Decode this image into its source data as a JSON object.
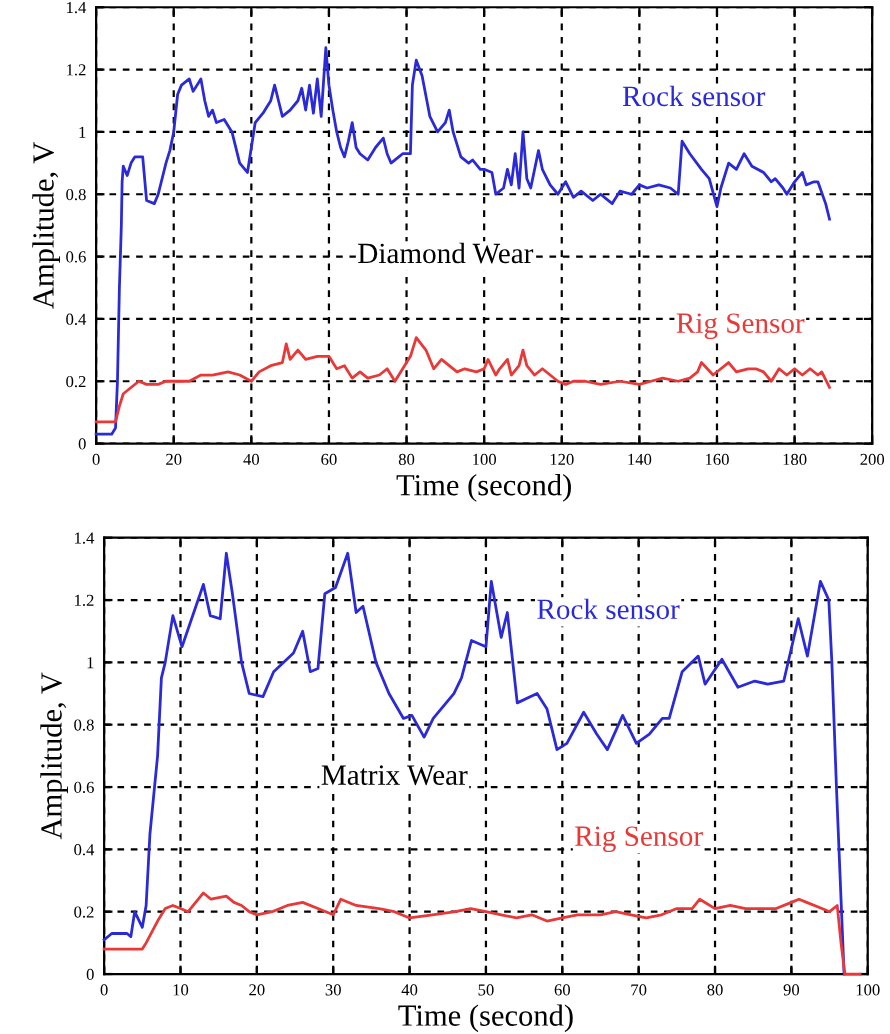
{
  "chart_data": [
    {
      "type": "line",
      "xlabel": "Time (second)",
      "ylabel": "Amplitude, V",
      "annotations": [
        "Diamond Wear"
      ],
      "xlim": [
        0,
        200
      ],
      "xticks": [
        0,
        20,
        40,
        60,
        80,
        100,
        120,
        140,
        160,
        180,
        200
      ],
      "ylim": [
        0,
        1.4
      ],
      "yticks": [
        0,
        0.2,
        0.4,
        0.6,
        0.8,
        1,
        1.2,
        1.4
      ],
      "grid": true,
      "line_style": "solid",
      "marker": "none",
      "series": [
        {
          "name": "Rock sensor",
          "color": "#2a2ad8",
          "x": [
            0,
            4,
            5,
            5.5,
            6,
            6.5,
            6.7,
            7,
            8,
            9,
            10,
            12,
            13,
            15,
            16,
            18,
            19,
            20,
            21,
            22,
            24,
            25,
            27,
            28,
            29,
            30,
            31,
            33,
            35,
            37,
            39,
            40,
            41,
            43,
            45,
            46,
            47,
            48,
            50,
            52,
            53,
            54,
            55,
            56,
            57,
            58,
            59.2,
            60,
            61,
            62,
            63,
            64,
            65,
            66,
            67,
            68,
            70,
            72,
            74,
            75,
            76,
            78,
            79,
            80,
            81,
            81.5,
            82.5,
            84,
            86,
            88,
            90,
            91,
            92,
            94,
            96,
            97,
            99,
            100,
            102,
            103,
            105,
            106,
            107,
            108,
            109,
            110,
            111,
            112,
            114,
            115,
            117,
            119,
            121,
            123,
            125,
            128,
            130,
            133,
            135,
            138,
            140,
            142,
            145,
            148,
            150,
            151,
            153,
            156,
            158,
            160,
            161,
            163,
            165,
            167,
            169,
            172,
            174,
            175,
            177,
            178,
            180,
            182,
            183,
            185,
            186,
            188,
            189
          ],
          "values": [
            0.03,
            0.03,
            0.05,
            0.2,
            0.5,
            0.7,
            0.84,
            0.89,
            0.86,
            0.9,
            0.92,
            0.92,
            0.78,
            0.77,
            0.8,
            0.9,
            0.94,
            1.0,
            1.12,
            1.15,
            1.17,
            1.13,
            1.17,
            1.1,
            1.05,
            1.07,
            1.03,
            1.04,
            1.0,
            0.9,
            0.87,
            0.95,
            1.03,
            1.06,
            1.1,
            1.15,
            1.1,
            1.05,
            1.07,
            1.1,
            1.14,
            1.07,
            1.15,
            1.06,
            1.17,
            1.05,
            1.27,
            1.15,
            1.07,
            1.0,
            0.95,
            0.92,
            0.97,
            1.03,
            0.95,
            0.93,
            0.91,
            0.95,
            0.98,
            0.93,
            0.9,
            0.92,
            0.93,
            0.93,
            0.93,
            1.15,
            1.23,
            1.18,
            1.05,
            1.0,
            1.03,
            1.07,
            1.0,
            0.92,
            0.9,
            0.91,
            0.88,
            0.88,
            0.87,
            0.8,
            0.82,
            0.88,
            0.83,
            0.93,
            0.82,
            1.0,
            0.85,
            0.82,
            0.94,
            0.88,
            0.83,
            0.8,
            0.84,
            0.79,
            0.81,
            0.78,
            0.8,
            0.77,
            0.81,
            0.8,
            0.83,
            0.82,
            0.83,
            0.82,
            0.8,
            0.97,
            0.93,
            0.88,
            0.85,
            0.76,
            0.82,
            0.9,
            0.88,
            0.93,
            0.89,
            0.87,
            0.84,
            0.85,
            0.82,
            0.8,
            0.84,
            0.87,
            0.83,
            0.84,
            0.84,
            0.77,
            0.72
          ]
        },
        {
          "name": "Rig Sensor",
          "color": "#e83838",
          "x": [
            0,
            5,
            6,
            7,
            9,
            11,
            13,
            16,
            18,
            20,
            24,
            27,
            30,
            34,
            37,
            40,
            42,
            45,
            48,
            49,
            50,
            52,
            54,
            57,
            60,
            62,
            64,
            66,
            68,
            70,
            73,
            75,
            77,
            79,
            81,
            82.5,
            85,
            87,
            89,
            91,
            93,
            95,
            98,
            100,
            101,
            103,
            104,
            106,
            107,
            109,
            110,
            111,
            113,
            115,
            117,
            119,
            121,
            123,
            126,
            130,
            135,
            140,
            143,
            146,
            150,
            153,
            155,
            156,
            159,
            161,
            163,
            165,
            168,
            170,
            172,
            174,
            176,
            178,
            180,
            182,
            184,
            186,
            187,
            189
          ],
          "values": [
            0.07,
            0.07,
            0.12,
            0.16,
            0.18,
            0.2,
            0.19,
            0.19,
            0.2,
            0.2,
            0.2,
            0.22,
            0.22,
            0.23,
            0.22,
            0.2,
            0.23,
            0.25,
            0.26,
            0.32,
            0.27,
            0.3,
            0.27,
            0.28,
            0.28,
            0.24,
            0.25,
            0.21,
            0.23,
            0.21,
            0.22,
            0.24,
            0.2,
            0.24,
            0.28,
            0.34,
            0.3,
            0.24,
            0.27,
            0.25,
            0.23,
            0.24,
            0.23,
            0.24,
            0.27,
            0.22,
            0.24,
            0.27,
            0.22,
            0.25,
            0.3,
            0.25,
            0.22,
            0.24,
            0.22,
            0.2,
            0.19,
            0.2,
            0.2,
            0.19,
            0.2,
            0.19,
            0.2,
            0.21,
            0.2,
            0.21,
            0.23,
            0.26,
            0.22,
            0.24,
            0.26,
            0.23,
            0.24,
            0.24,
            0.23,
            0.2,
            0.24,
            0.22,
            0.24,
            0.22,
            0.24,
            0.22,
            0.23,
            0.18
          ]
        }
      ]
    },
    {
      "type": "line",
      "xlabel": "Time (second)",
      "ylabel": "Amplitude, V",
      "annotations": [
        "Matrix Wear"
      ],
      "xlim": [
        0,
        100
      ],
      "xticks": [
        0,
        10,
        20,
        30,
        40,
        50,
        60,
        70,
        80,
        90,
        100
      ],
      "ylim": [
        0,
        1.4
      ],
      "yticks": [
        0,
        0.2,
        0.4,
        0.6,
        0.8,
        1,
        1.2,
        1.4
      ],
      "grid": true,
      "line_style": "solid",
      "marker": "none",
      "series": [
        {
          "name": "Rock sensor",
          "color": "#2a2ad8",
          "x": [
            0,
            1,
            3,
            3.5,
            4,
            5,
            5.5,
            6,
            7,
            7.5,
            8,
            9,
            10.2,
            13,
            13.9,
            15.2,
            16,
            16.8,
            18,
            19,
            20.8,
            22.2,
            24.8,
            26,
            27,
            28,
            28.9,
            30.3,
            31.9,
            33,
            33.9,
            35.6,
            37.3,
            39.2,
            40.3,
            41.9,
            43.1,
            45.8,
            46.8,
            48.1,
            50,
            50.7,
            52,
            52.8,
            54.1,
            56.7,
            58,
            59.3,
            60.6,
            62.8,
            64.5,
            65.9,
            67.9,
            69.7,
            71.4,
            73.1,
            74,
            75.7,
            77.8,
            78.7,
            80.9,
            83,
            85.2,
            86.9,
            89,
            90.9,
            92.1,
            93.8,
            94.9,
            95.3,
            95.9,
            96.9
          ],
          "values": [
            0.11,
            0.13,
            0.13,
            0.12,
            0.2,
            0.15,
            0.22,
            0.45,
            0.7,
            0.95,
            1.0,
            1.15,
            1.05,
            1.25,
            1.15,
            1.14,
            1.35,
            1.22,
            1.0,
            0.9,
            0.89,
            0.97,
            1.03,
            1.1,
            0.97,
            0.98,
            1.22,
            1.24,
            1.35,
            1.16,
            1.18,
            1.0,
            0.9,
            0.82,
            0.83,
            0.76,
            0.82,
            0.9,
            0.95,
            1.07,
            1.05,
            1.26,
            1.08,
            1.16,
            0.87,
            0.9,
            0.85,
            0.72,
            0.74,
            0.84,
            0.77,
            0.72,
            0.83,
            0.74,
            0.77,
            0.82,
            0.82,
            0.97,
            1.02,
            0.93,
            1.01,
            0.92,
            0.94,
            0.93,
            0.94,
            1.14,
            1.02,
            1.26,
            1.2,
            1.0,
            0.6,
            0.0
          ]
        },
        {
          "name": "Rig Sensor",
          "color": "#e83838",
          "x": [
            0,
            5,
            5.5,
            7,
            8,
            9,
            10,
            11,
            13,
            14,
            16,
            17,
            18,
            19,
            20,
            22,
            24,
            26,
            28,
            30,
            31,
            33,
            36,
            38,
            40,
            43,
            46,
            48,
            50,
            52,
            54,
            56,
            58,
            60,
            62,
            65,
            67,
            69,
            71,
            73,
            75,
            77,
            78,
            80,
            82,
            84,
            86,
            88,
            90,
            91,
            92,
            94,
            95,
            96,
            96.5,
            97,
            99
          ],
          "values": [
            0.08,
            0.08,
            0.1,
            0.17,
            0.21,
            0.22,
            0.21,
            0.2,
            0.26,
            0.24,
            0.25,
            0.23,
            0.22,
            0.2,
            0.19,
            0.2,
            0.22,
            0.23,
            0.21,
            0.19,
            0.24,
            0.22,
            0.21,
            0.2,
            0.18,
            0.19,
            0.2,
            0.21,
            0.2,
            0.19,
            0.18,
            0.19,
            0.17,
            0.18,
            0.19,
            0.19,
            0.2,
            0.19,
            0.18,
            0.19,
            0.21,
            0.21,
            0.24,
            0.21,
            0.22,
            0.21,
            0.21,
            0.21,
            0.23,
            0.24,
            0.23,
            0.21,
            0.2,
            0.22,
            0.1,
            0.0,
            0.0
          ]
        }
      ]
    }
  ]
}
